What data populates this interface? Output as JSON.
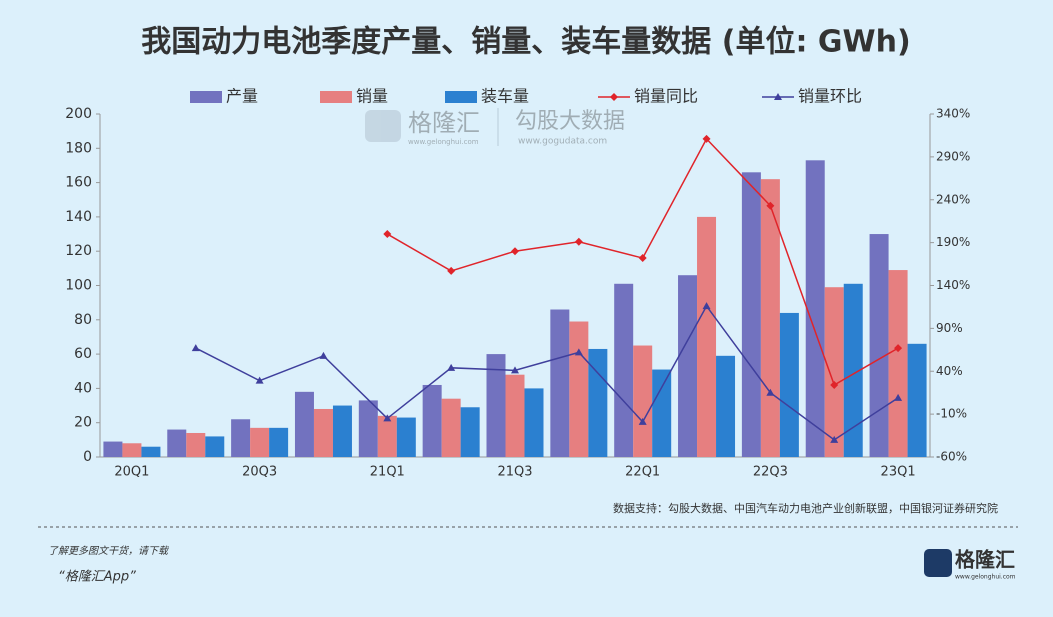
{
  "chart_data": {
    "type": "bar",
    "title": "我国动力电池季度产量、销量、装车量数据 (单位: GWh)",
    "categories": [
      "20Q1",
      null,
      "20Q3",
      null,
      "21Q1",
      null,
      "21Q3",
      null,
      "22Q1",
      null,
      "22Q3",
      null,
      "23Q1"
    ],
    "series": [
      {
        "name": "产量",
        "type": "bar",
        "color": "#7272bf",
        "values": [
          9,
          16,
          22,
          38,
          33,
          42,
          60,
          86,
          101,
          106,
          166,
          173,
          130
        ]
      },
      {
        "name": "销量",
        "type": "bar",
        "color": "#e67f80",
        "values": [
          8,
          14,
          17,
          28,
          24,
          34,
          48,
          79,
          65,
          140,
          162,
          99,
          109
        ]
      },
      {
        "name": "装车量",
        "type": "bar",
        "color": "#2b80d0",
        "values": [
          6,
          12,
          17,
          30,
          23,
          29,
          40,
          63,
          51,
          59,
          84,
          101,
          66
        ]
      },
      {
        "name": "销量同比",
        "type": "line",
        "axis": "y2",
        "marker": "diamond",
        "color": "#e0242a",
        "values": [
          null,
          null,
          null,
          null,
          200,
          157,
          180,
          191,
          172,
          311,
          233,
          24,
          67
        ]
      },
      {
        "name": "销量环比",
        "type": "line",
        "axis": "y2",
        "marker": "triangle",
        "color": "#3f3f9c",
        "values": [
          null,
          67,
          29,
          58,
          -15,
          44,
          41,
          62,
          -19,
          116,
          15,
          -40,
          9
        ]
      }
    ],
    "ylim": [
      0,
      200
    ],
    "yticks": [
      0,
      20,
      40,
      60,
      80,
      100,
      120,
      140,
      160,
      180,
      200
    ],
    "y2lim": [
      -60,
      340
    ],
    "y2ticks": [
      {
        "value": -60,
        "label": "-60%"
      },
      {
        "value": -10,
        "label": "-10%"
      },
      {
        "value": 40,
        "label": "40%"
      },
      {
        "value": 90,
        "label": "90%"
      },
      {
        "value": 140,
        "label": "140%"
      },
      {
        "value": 190,
        "label": "190%"
      },
      {
        "value": 240,
        "label": "240%"
      },
      {
        "value": 290,
        "label": "290%"
      },
      {
        "value": 340,
        "label": "340%"
      }
    ],
    "source": "数据支持：勾股大数据、中国汽车动力电池产业创新联盟，中国银河证券研究院"
  },
  "watermark": {
    "brand": "格隆汇",
    "brand_url": "www.gelonghui.com",
    "partner": "勾股大数据",
    "partner_url": "www.gogudata.com"
  },
  "footer": {
    "prompt": "了解更多图文干货，请下载",
    "app": "“格隆汇App”",
    "logo": "格隆汇",
    "logo_url": "www.gelonghui.com"
  }
}
